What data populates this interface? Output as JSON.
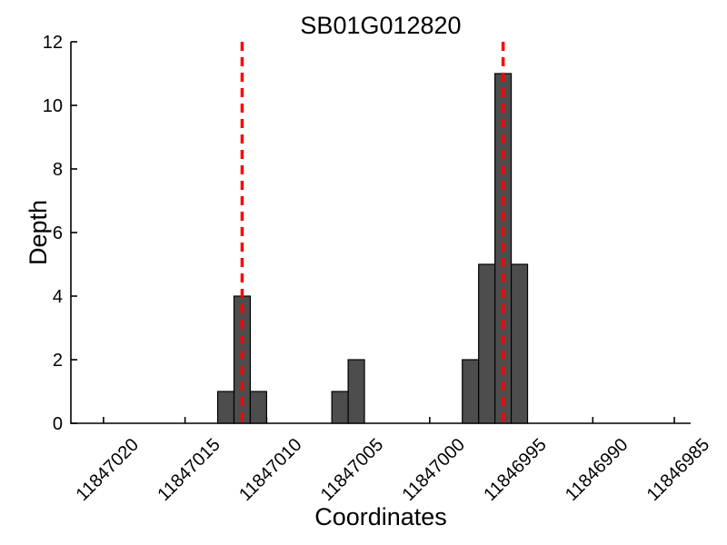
{
  "figure": {
    "background": "#ffffff"
  },
  "chart_data": {
    "type": "bar",
    "title": "SB01G012820",
    "xlabel": "Coordinates",
    "ylabel": "Depth",
    "x_axis_reversed": true,
    "xlim": [
      11847022,
      11846984
    ],
    "ylim": [
      0,
      12
    ],
    "grid": false,
    "legend": "none",
    "x_ticks": [
      {
        "v": 11847020,
        "label": "11847020"
      },
      {
        "v": 11847015,
        "label": "11847015"
      },
      {
        "v": 11847010,
        "label": "11847010"
      },
      {
        "v": 11847005,
        "label": "11847005"
      },
      {
        "v": 11847000,
        "label": "11847000"
      },
      {
        "v": 11846995,
        "label": "11846995"
      },
      {
        "v": 11846990,
        "label": "11846990"
      },
      {
        "v": 11846985,
        "label": "11846985"
      }
    ],
    "y_ticks": [
      {
        "v": 0,
        "label": "0"
      },
      {
        "v": 2,
        "label": "2"
      },
      {
        "v": 4,
        "label": "4"
      },
      {
        "v": 6,
        "label": "6"
      },
      {
        "v": 8,
        "label": "8"
      },
      {
        "v": 10,
        "label": "10"
      },
      {
        "v": 12,
        "label": "12"
      }
    ],
    "bin_width": 1,
    "bars": [
      {
        "x": 11847012.5,
        "count": 1
      },
      {
        "x": 11847011.5,
        "count": 4
      },
      {
        "x": 11847010.5,
        "count": 1
      },
      {
        "x": 11847005.5,
        "count": 1
      },
      {
        "x": 11847004.5,
        "count": 2
      },
      {
        "x": 11846997.5,
        "count": 2
      },
      {
        "x": 11846996.5,
        "count": 5
      },
      {
        "x": 11846995.5,
        "count": 11
      },
      {
        "x": 11846994.5,
        "count": 5
      }
    ],
    "markers": [
      {
        "x": 11847011.5,
        "style": "dashed-vertical"
      },
      {
        "x": 11846995.5,
        "style": "dashed-vertical"
      }
    ],
    "colors": {
      "bar_fill": "#4d4d4d",
      "bar_edge": "#000000",
      "marker_line": "#ff0000",
      "axis": "#000000",
      "text": "#000000"
    }
  }
}
